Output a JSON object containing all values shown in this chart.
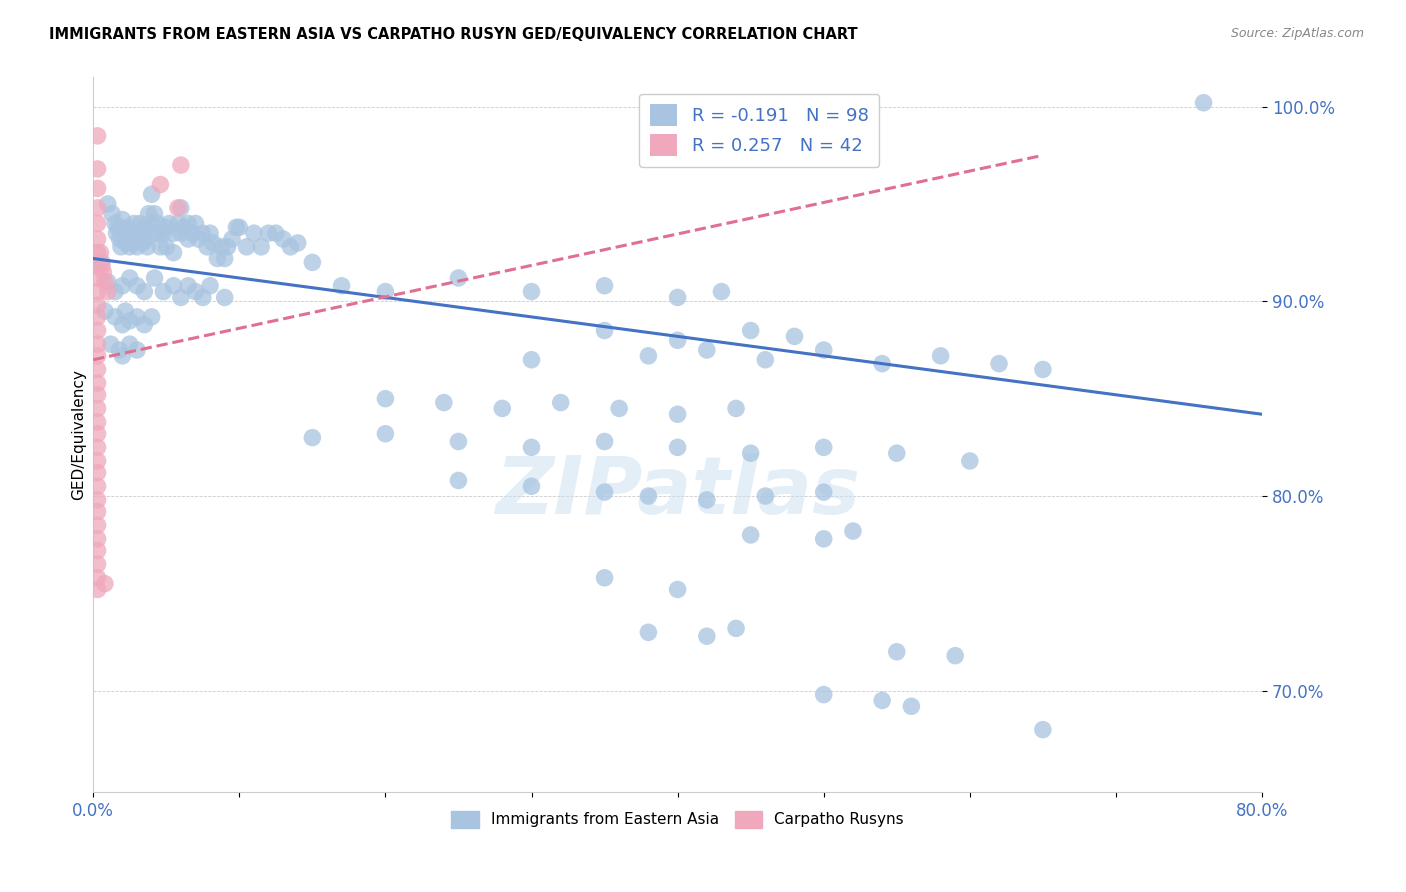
{
  "title": "IMMIGRANTS FROM EASTERN ASIA VS CARPATHO RUSYN GED/EQUIVALENCY CORRELATION CHART",
  "source": "Source: ZipAtlas.com",
  "ylabel": "GED/Equivalency",
  "y_tick_labels": [
    "70.0%",
    "80.0%",
    "90.0%",
    "100.0%"
  ],
  "y_tick_values": [
    0.7,
    0.8,
    0.9,
    1.0
  ],
  "legend_blue_label": "Immigrants from Eastern Asia",
  "legend_pink_label": "Carpatho Rusyns",
  "legend_r_blue": "-0.191",
  "legend_n_blue": "98",
  "legend_r_pink": "0.257",
  "legend_n_pink": "42",
  "watermark": "ZIPatlas",
  "blue_color": "#a8c4e0",
  "pink_color": "#f0a8bc",
  "blue_line_color": "#4472c4",
  "pink_line_color": "#e07090",
  "blue_dots": [
    [
      0.006,
      0.92
    ],
    [
      0.01,
      0.95
    ],
    [
      0.013,
      0.945
    ],
    [
      0.015,
      0.94
    ],
    [
      0.016,
      0.935
    ],
    [
      0.017,
      0.938
    ],
    [
      0.018,
      0.932
    ],
    [
      0.019,
      0.928
    ],
    [
      0.02,
      0.942
    ],
    [
      0.021,
      0.935
    ],
    [
      0.022,
      0.93
    ],
    [
      0.023,
      0.938
    ],
    [
      0.024,
      0.932
    ],
    [
      0.025,
      0.928
    ],
    [
      0.026,
      0.935
    ],
    [
      0.027,
      0.93
    ],
    [
      0.028,
      0.94
    ],
    [
      0.029,
      0.935
    ],
    [
      0.03,
      0.928
    ],
    [
      0.031,
      0.932
    ],
    [
      0.032,
      0.94
    ],
    [
      0.033,
      0.935
    ],
    [
      0.034,
      0.93
    ],
    [
      0.035,
      0.938
    ],
    [
      0.036,
      0.932
    ],
    [
      0.037,
      0.928
    ],
    [
      0.038,
      0.945
    ],
    [
      0.04,
      0.955
    ],
    [
      0.04,
      0.94
    ],
    [
      0.042,
      0.945
    ],
    [
      0.043,
      0.935
    ],
    [
      0.044,
      0.94
    ],
    [
      0.045,
      0.935
    ],
    [
      0.046,
      0.928
    ],
    [
      0.048,
      0.935
    ],
    [
      0.05,
      0.938
    ],
    [
      0.05,
      0.928
    ],
    [
      0.052,
      0.94
    ],
    [
      0.055,
      0.935
    ],
    [
      0.055,
      0.925
    ],
    [
      0.058,
      0.94
    ],
    [
      0.06,
      0.948
    ],
    [
      0.06,
      0.935
    ],
    [
      0.062,
      0.938
    ],
    [
      0.065,
      0.94
    ],
    [
      0.065,
      0.932
    ],
    [
      0.068,
      0.935
    ],
    [
      0.07,
      0.94
    ],
    [
      0.072,
      0.932
    ],
    [
      0.075,
      0.935
    ],
    [
      0.078,
      0.928
    ],
    [
      0.08,
      0.935
    ],
    [
      0.082,
      0.93
    ],
    [
      0.085,
      0.922
    ],
    [
      0.088,
      0.928
    ],
    [
      0.09,
      0.922
    ],
    [
      0.092,
      0.928
    ],
    [
      0.095,
      0.932
    ],
    [
      0.098,
      0.938
    ],
    [
      0.1,
      0.938
    ],
    [
      0.105,
      0.928
    ],
    [
      0.11,
      0.935
    ],
    [
      0.115,
      0.928
    ],
    [
      0.12,
      0.935
    ],
    [
      0.125,
      0.935
    ],
    [
      0.13,
      0.932
    ],
    [
      0.135,
      0.928
    ],
    [
      0.14,
      0.93
    ],
    [
      0.01,
      0.91
    ],
    [
      0.015,
      0.905
    ],
    [
      0.02,
      0.908
    ],
    [
      0.025,
      0.912
    ],
    [
      0.03,
      0.908
    ],
    [
      0.035,
      0.905
    ],
    [
      0.042,
      0.912
    ],
    [
      0.048,
      0.905
    ],
    [
      0.055,
      0.908
    ],
    [
      0.06,
      0.902
    ],
    [
      0.065,
      0.908
    ],
    [
      0.07,
      0.905
    ],
    [
      0.075,
      0.902
    ],
    [
      0.08,
      0.908
    ],
    [
      0.09,
      0.902
    ],
    [
      0.008,
      0.895
    ],
    [
      0.015,
      0.892
    ],
    [
      0.02,
      0.888
    ],
    [
      0.022,
      0.895
    ],
    [
      0.025,
      0.89
    ],
    [
      0.03,
      0.892
    ],
    [
      0.035,
      0.888
    ],
    [
      0.04,
      0.892
    ],
    [
      0.012,
      0.878
    ],
    [
      0.018,
      0.875
    ],
    [
      0.02,
      0.872
    ],
    [
      0.025,
      0.878
    ],
    [
      0.03,
      0.875
    ],
    [
      0.15,
      0.92
    ],
    [
      0.17,
      0.908
    ],
    [
      0.2,
      0.905
    ],
    [
      0.25,
      0.912
    ],
    [
      0.3,
      0.905
    ],
    [
      0.35,
      0.908
    ],
    [
      0.4,
      0.902
    ],
    [
      0.43,
      0.905
    ],
    [
      0.35,
      0.885
    ],
    [
      0.4,
      0.88
    ],
    [
      0.45,
      0.885
    ],
    [
      0.48,
      0.882
    ],
    [
      0.3,
      0.87
    ],
    [
      0.38,
      0.872
    ],
    [
      0.42,
      0.875
    ],
    [
      0.46,
      0.87
    ],
    [
      0.5,
      0.875
    ],
    [
      0.54,
      0.868
    ],
    [
      0.58,
      0.872
    ],
    [
      0.62,
      0.868
    ],
    [
      0.65,
      0.865
    ],
    [
      0.2,
      0.85
    ],
    [
      0.24,
      0.848
    ],
    [
      0.28,
      0.845
    ],
    [
      0.32,
      0.848
    ],
    [
      0.36,
      0.845
    ],
    [
      0.4,
      0.842
    ],
    [
      0.44,
      0.845
    ],
    [
      0.15,
      0.83
    ],
    [
      0.2,
      0.832
    ],
    [
      0.25,
      0.828
    ],
    [
      0.3,
      0.825
    ],
    [
      0.35,
      0.828
    ],
    [
      0.4,
      0.825
    ],
    [
      0.45,
      0.822
    ],
    [
      0.5,
      0.825
    ],
    [
      0.55,
      0.822
    ],
    [
      0.6,
      0.818
    ],
    [
      0.25,
      0.808
    ],
    [
      0.3,
      0.805
    ],
    [
      0.35,
      0.802
    ],
    [
      0.38,
      0.8
    ],
    [
      0.42,
      0.798
    ],
    [
      0.46,
      0.8
    ],
    [
      0.5,
      0.802
    ],
    [
      0.45,
      0.78
    ],
    [
      0.5,
      0.778
    ],
    [
      0.52,
      0.782
    ],
    [
      0.35,
      0.758
    ],
    [
      0.4,
      0.752
    ],
    [
      0.38,
      0.73
    ],
    [
      0.42,
      0.728
    ],
    [
      0.44,
      0.732
    ],
    [
      0.55,
      0.72
    ],
    [
      0.59,
      0.718
    ],
    [
      0.5,
      0.698
    ],
    [
      0.54,
      0.695
    ],
    [
      0.56,
      0.692
    ],
    [
      0.65,
      0.68
    ],
    [
      0.76,
      1.002
    ]
  ],
  "pink_dots": [
    [
      0.003,
      0.985
    ],
    [
      0.003,
      0.968
    ],
    [
      0.003,
      0.958
    ],
    [
      0.003,
      0.948
    ],
    [
      0.003,
      0.94
    ],
    [
      0.003,
      0.932
    ],
    [
      0.003,
      0.925
    ],
    [
      0.003,
      0.918
    ],
    [
      0.003,
      0.912
    ],
    [
      0.003,
      0.905
    ],
    [
      0.003,
      0.898
    ],
    [
      0.003,
      0.892
    ],
    [
      0.003,
      0.885
    ],
    [
      0.003,
      0.878
    ],
    [
      0.003,
      0.872
    ],
    [
      0.003,
      0.865
    ],
    [
      0.003,
      0.858
    ],
    [
      0.003,
      0.852
    ],
    [
      0.003,
      0.845
    ],
    [
      0.003,
      0.838
    ],
    [
      0.003,
      0.832
    ],
    [
      0.003,
      0.825
    ],
    [
      0.003,
      0.818
    ],
    [
      0.003,
      0.812
    ],
    [
      0.003,
      0.805
    ],
    [
      0.003,
      0.798
    ],
    [
      0.003,
      0.792
    ],
    [
      0.003,
      0.785
    ],
    [
      0.003,
      0.778
    ],
    [
      0.003,
      0.772
    ],
    [
      0.003,
      0.765
    ],
    [
      0.003,
      0.758
    ],
    [
      0.003,
      0.752
    ],
    [
      0.005,
      0.925
    ],
    [
      0.006,
      0.918
    ],
    [
      0.007,
      0.915
    ],
    [
      0.008,
      0.91
    ],
    [
      0.01,
      0.905
    ],
    [
      0.008,
      0.755
    ],
    [
      0.046,
      0.96
    ],
    [
      0.058,
      0.948
    ],
    [
      0.06,
      0.97
    ]
  ],
  "blue_trendline": [
    [
      0.0,
      0.922
    ],
    [
      0.8,
      0.842
    ]
  ],
  "pink_trendline": [
    [
      0.0,
      0.87
    ],
    [
      0.65,
      0.975
    ]
  ],
  "xlim": [
    0.0,
    0.8
  ],
  "ylim": [
    0.648,
    1.015
  ]
}
